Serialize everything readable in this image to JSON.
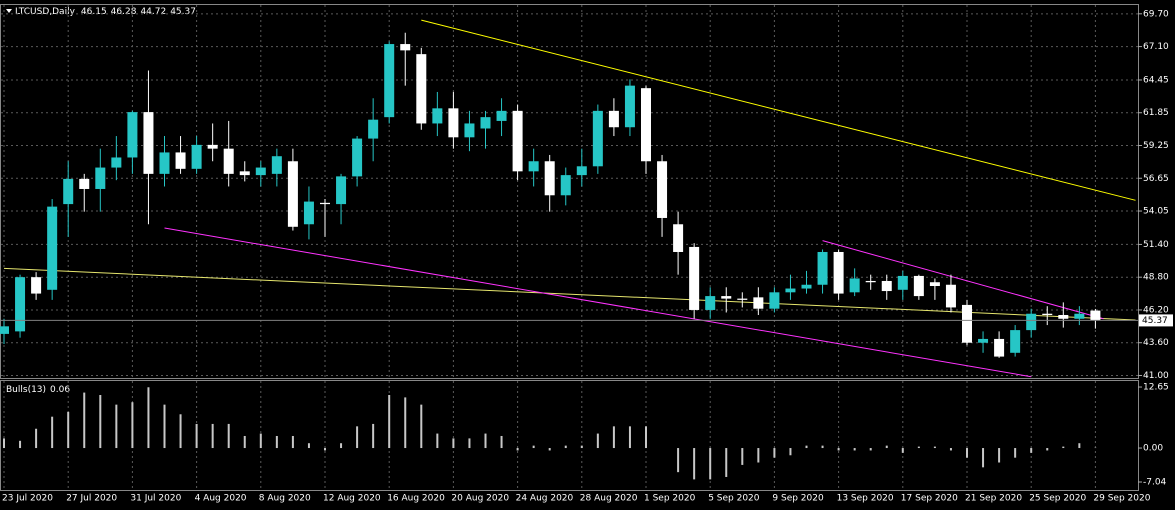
{
  "chart_data": [
    {
      "type": "candlestick",
      "symbol": "LTCUSD,Daily",
      "categories": [
        "23 Jul 2020",
        null,
        null,
        null,
        "27 Jul 2020",
        null,
        null,
        null,
        "31 Jul 2020",
        null,
        null,
        null,
        "4 Aug 2020",
        null,
        null,
        null,
        "8 Aug 2020",
        null,
        null,
        null,
        "12 Aug 2020",
        null,
        null,
        null,
        "16 Aug 2020",
        null,
        null,
        null,
        "20 Aug 2020",
        null,
        null,
        null,
        "24 Aug 2020",
        null,
        null,
        null,
        "28 Aug 2020",
        null,
        null,
        null,
        "1 Sep 2020",
        null,
        null,
        null,
        "5 Sep 2020",
        null,
        null,
        null,
        "9 Sep 2020",
        null,
        null,
        null,
        "13 Sep 2020",
        null,
        null,
        null,
        "17 Sep 2020",
        null,
        null,
        null,
        "21 Sep 2020",
        null,
        null,
        null,
        "25 Sep 2020",
        null,
        null,
        null,
        "29 Sep 2020"
      ],
      "open": [
        44.3,
        44.5,
        48.8,
        47.8,
        54.6,
        56.6,
        55.8,
        57.5,
        58.3,
        61.9,
        57.0,
        58.7,
        57.4,
        59.3,
        59.0,
        57.2,
        56.9,
        57.0,
        58.0,
        53.0,
        54.7,
        54.6,
        56.8,
        59.8,
        61.5,
        67.3,
        66.5,
        61.0,
        62.2,
        59.9,
        60.6,
        61.2,
        62.0,
        57.2,
        58.0,
        55.3,
        56.9,
        57.6,
        62.0,
        60.7,
        63.8,
        58.0,
        53.0,
        51.2,
        46.2,
        47.3,
        47.1,
        47.2,
        46.3,
        47.6,
        47.9,
        48.2,
        50.8,
        47.6,
        48.5,
        48.5,
        47.8,
        48.9,
        48.4,
        48.2,
        46.6,
        43.6,
        43.9,
        42.8,
        44.6,
        45.9,
        45.8,
        45.5,
        46.15
      ],
      "high": [
        45.5,
        49.0,
        49.2,
        55.0,
        58.0,
        57.0,
        59.0,
        60.0,
        62.0,
        65.2,
        60.0,
        60.0,
        60.0,
        61.0,
        61.2,
        58.0,
        58.0,
        59.0,
        59.0,
        56.0,
        55.0,
        57.0,
        60.0,
        63.0,
        67.5,
        68.2,
        67.0,
        63.5,
        63.5,
        62.0,
        62.0,
        63.0,
        62.5,
        59.0,
        58.5,
        57.5,
        59.0,
        62.5,
        63.0,
        64.5,
        64.0,
        58.5,
        54.0,
        51.5,
        48.0,
        48.0,
        47.6,
        48.0,
        48.0,
        49.0,
        49.3,
        51.0,
        51.0,
        49.5,
        49.0,
        49.0,
        49.3,
        49.0,
        48.7,
        49.0,
        47.0,
        44.5,
        44.5,
        45.0,
        46.3,
        46.5,
        46.8,
        46.5,
        46.28
      ],
      "low": [
        43.5,
        44.0,
        47.0,
        47.0,
        52.0,
        54.0,
        54.0,
        56.5,
        57.0,
        53.0,
        56.0,
        57.0,
        57.0,
        58.0,
        56.0,
        56.4,
        56.0,
        56.0,
        52.5,
        51.8,
        52.0,
        53.0,
        56.0,
        58.0,
        61.0,
        64.0,
        60.5,
        60.0,
        59.0,
        58.8,
        59.0,
        60.0,
        56.5,
        56.0,
        54.0,
        54.5,
        56.0,
        57.0,
        60.0,
        60.0,
        57.0,
        52.0,
        49.0,
        45.5,
        45.5,
        46.0,
        46.4,
        45.8,
        46.0,
        47.0,
        47.5,
        47.5,
        47.0,
        47.3,
        47.8,
        47.0,
        47.0,
        47.0,
        47.0,
        46.0,
        43.4,
        42.8,
        42.4,
        42.5,
        44.0,
        45.0,
        44.8,
        45.0,
        44.72
      ],
      "close": [
        44.9,
        48.8,
        47.5,
        54.4,
        56.6,
        55.8,
        57.5,
        58.3,
        61.9,
        57.0,
        58.7,
        57.4,
        59.3,
        59.0,
        57.0,
        56.9,
        57.5,
        58.4,
        52.8,
        54.8,
        54.6,
        56.8,
        59.8,
        61.3,
        67.3,
        66.8,
        61.0,
        62.2,
        59.9,
        61.0,
        61.5,
        62.0,
        57.2,
        58.0,
        55.3,
        56.9,
        57.6,
        62.0,
        60.7,
        64.0,
        58.0,
        53.5,
        50.8,
        46.2,
        47.3,
        47.1,
        47.0,
        46.3,
        47.6,
        47.9,
        48.2,
        50.8,
        47.5,
        48.7,
        48.4,
        47.7,
        48.9,
        47.3,
        48.1,
        46.4,
        43.6,
        43.9,
        42.5,
        44.6,
        45.9,
        45.8,
        45.5,
        45.9,
        45.37
      ],
      "up_color": "#26c6c6",
      "down_color": "#ffffff",
      "ylim": [
        40.8,
        70.4
      ],
      "yticks": [
        {
          "value": 69.7,
          "label": "69.70"
        },
        {
          "value": 67.1,
          "label": "67.10"
        },
        64.45,
        61.85,
        59.25,
        56.65,
        54.05,
        {
          "value": 51.4,
          "label": "51.40"
        },
        {
          "value": 48.8,
          "label": "48.80"
        },
        {
          "value": 46.2,
          "label": "46.20"
        },
        {
          "value": 43.6,
          "label": "43.60"
        },
        {
          "value": 41.0,
          "label": "41.00"
        }
      ],
      "grid": true,
      "trendlines": [
        {
          "color": "#ffff00",
          "points": [
            [
              26,
              69.2
            ],
            [
              70.5,
              54.9
            ]
          ]
        },
        {
          "color": "#e6e66e",
          "points": [
            [
              0,
              49.5
            ],
            [
              70.5,
              45.4
            ]
          ]
        },
        {
          "color": "#ff33ff",
          "points": [
            [
              10,
              52.7
            ],
            [
              64,
              40.9
            ]
          ]
        },
        {
          "color": "#ff33ff",
          "points": [
            [
              51,
              51.7
            ],
            [
              68.5,
              45.5
            ]
          ]
        }
      ]
    },
    {
      "type": "bar",
      "title": "Bulls(13)",
      "color": "#c8c8c8",
      "values": [
        2,
        1.5,
        4,
        6.5,
        7.5,
        11.5,
        11,
        9,
        9.5,
        12.6,
        9,
        7,
        5,
        5,
        5,
        2.5,
        3,
        2.5,
        2.5,
        1,
        -0.5,
        1,
        4.5,
        5,
        11,
        10.5,
        9,
        3,
        2,
        2,
        3,
        2.5,
        -0.5,
        0.5,
        -0.5,
        0.5,
        0.5,
        3,
        4.5,
        4.5,
        4.5,
        0,
        -5,
        -6.5,
        -6.5,
        -6,
        -3.5,
        -3,
        -2,
        -1.5,
        0.5,
        0.5,
        -0.5,
        -0.5,
        -0.5,
        0.5,
        -1,
        0.3,
        0.3,
        -0.5,
        -2,
        -4,
        -3,
        -2,
        -1,
        -0.5,
        0.3,
        1,
        0.06
      ],
      "ylim": [
        -8.7,
        13.9
      ],
      "yticks": [
        12.65,
        {
          "value": 0,
          "label": "0.00"
        },
        -7.04
      ]
    }
  ]
}
